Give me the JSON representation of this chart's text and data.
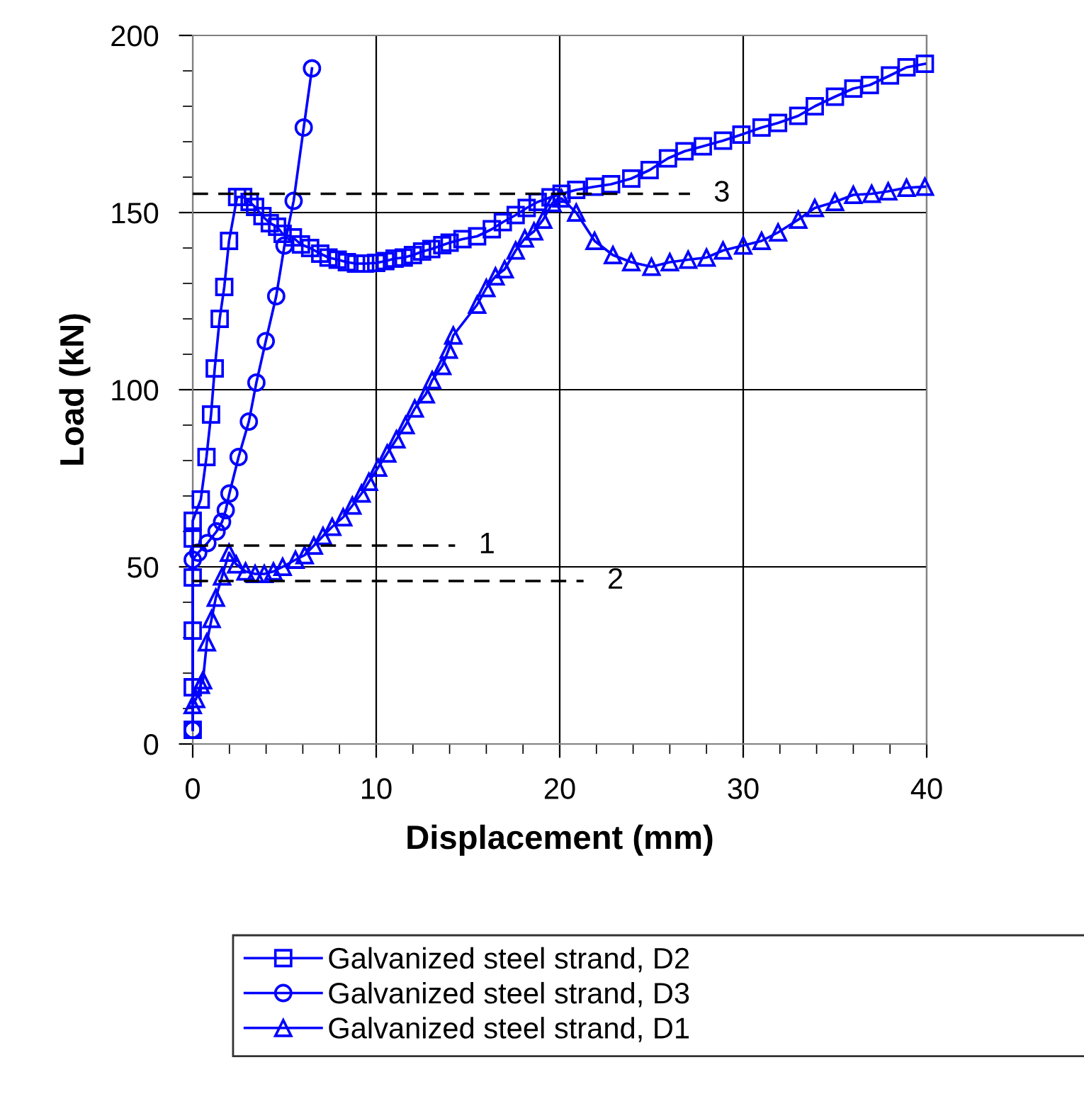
{
  "chart_data": {
    "type": "line",
    "xlabel": "Displacement (mm)",
    "ylabel": "Load (kN)",
    "xlim": [
      0,
      40
    ],
    "ylim": [
      0,
      200
    ],
    "xticks": [
      0,
      10,
      20,
      30,
      40
    ],
    "yticks": [
      0,
      50,
      100,
      150,
      200
    ],
    "grid": true,
    "legend": "bottom",
    "series": [
      {
        "name": "Galvanized steel strand, D2",
        "color": "#0000ff",
        "marker": "square",
        "x": [
          0,
          0,
          0,
          0,
          0,
          0,
          0.44,
          0.75,
          1.0,
          1.2,
          1.47,
          1.72,
          1.98,
          2.42,
          2.75,
          3.1,
          3.4,
          3.8,
          4.2,
          4.6,
          4.9,
          5.46,
          5.9,
          6.4,
          6.95,
          7.4,
          7.9,
          8.4,
          8.9,
          9.4,
          10,
          10.5,
          11,
          11.5,
          12,
          12.5,
          13,
          13.6,
          14,
          14.7,
          15.5,
          16.3,
          16.9,
          17.6,
          18.2,
          18.8,
          19.5,
          20.1,
          20.9,
          21.9,
          22.8,
          23.9,
          24.9,
          25.9,
          26.8,
          27.8,
          28.9,
          29.9,
          31,
          31.9,
          33,
          33.9,
          35,
          36,
          36.9,
          38,
          38.9,
          39.9
        ],
        "values": [
          4,
          16,
          32,
          47,
          58,
          63,
          69,
          81,
          93,
          106,
          120,
          129,
          142,
          154.4,
          154.4,
          153,
          151.6,
          149,
          147,
          146,
          144,
          143,
          141,
          140,
          138.4,
          137.3,
          136.7,
          136,
          135.6,
          135.6,
          135.8,
          136.3,
          137,
          137.3,
          138,
          139,
          139.7,
          140.8,
          141.5,
          142.5,
          143.3,
          145.3,
          147.3,
          149.3,
          151.3,
          153,
          154.3,
          155.3,
          156.4,
          157.3,
          158,
          159.6,
          162,
          165.3,
          167.3,
          168.7,
          170.3,
          172,
          174,
          175.3,
          177.3,
          180,
          182.7,
          185,
          186,
          188.7,
          191,
          192
        ]
      },
      {
        "name": "Galvanized steel strand, D3",
        "color": "#0000ff",
        "marker": "circle",
        "x": [
          0,
          0,
          0.3,
          0.8,
          1.3,
          1.6,
          1.8,
          2.0,
          2.5,
          3.06,
          3.47,
          3.98,
          4.55,
          5.0,
          5.5,
          6.05,
          6.5
        ],
        "values": [
          4,
          52,
          54,
          56.7,
          60,
          62.7,
          66,
          70.7,
          81,
          91,
          102,
          113.7,
          126.4,
          140.7,
          153.3,
          174,
          190.7
        ]
      },
      {
        "name": "Galvanized steel strand, D1",
        "color": "#0000ff",
        "marker": "triangle",
        "x": [
          0,
          0.18,
          0.44,
          0.56,
          0.77,
          1.03,
          1.26,
          1.6,
          1.98,
          2.37,
          2.88,
          3.4,
          3.9,
          4.4,
          4.9,
          5.6,
          6.1,
          6.6,
          7.1,
          7.6,
          8.2,
          8.7,
          9.2,
          9.6,
          10.1,
          10.6,
          11.1,
          11.6,
          12.1,
          12.7,
          13.05,
          13.6,
          13.95,
          14.2,
          15.5,
          16,
          16.5,
          17,
          17.6,
          18.1,
          18.6,
          19.1,
          19.6,
          20.1,
          20.9,
          21.9,
          22.9,
          23.9,
          25,
          26,
          27,
          28,
          28.9,
          30,
          31,
          31.9,
          33,
          33.9,
          35,
          36,
          37,
          37.9,
          38.9,
          39.9
        ],
        "values": [
          11,
          12.7,
          16.7,
          18,
          28.7,
          35.3,
          41.3,
          47.3,
          54,
          50.7,
          48.7,
          48,
          48,
          48.7,
          50,
          52,
          53.3,
          56,
          58.7,
          61.3,
          64,
          67.3,
          70.7,
          74,
          78,
          82,
          86,
          90,
          94.7,
          98.7,
          102.7,
          106.7,
          111.3,
          115.3,
          124,
          128.7,
          132,
          134,
          139.3,
          142.7,
          144.7,
          148,
          152.7,
          154,
          150,
          142,
          138,
          136,
          134.7,
          136,
          136.7,
          137.3,
          139.3,
          140.7,
          142,
          144.4,
          148,
          151.3,
          153,
          155,
          155.3,
          156,
          157,
          157.3
        ]
      },
      {
        "color": "#000000",
        "marker": "none",
        "line_style": "dashed",
        "x": [
          0,
          14.3
        ],
        "values": [
          56,
          56
        ]
      },
      {
        "color": "#000000",
        "marker": "none",
        "line_style": "dashed",
        "x": [
          0,
          21.3
        ],
        "values": [
          46,
          46
        ]
      },
      {
        "color": "#000000",
        "marker": "none",
        "line_style": "dashed",
        "x": [
          0,
          27.1
        ],
        "values": [
          155.3,
          155.3
        ]
      }
    ],
    "annotations": [
      {
        "text": "1",
        "x": 14.3,
        "y": 56
      },
      {
        "text": "2",
        "x": 21.3,
        "y": 46
      },
      {
        "text": "3",
        "x": 27.1,
        "y": 155.3
      }
    ]
  }
}
